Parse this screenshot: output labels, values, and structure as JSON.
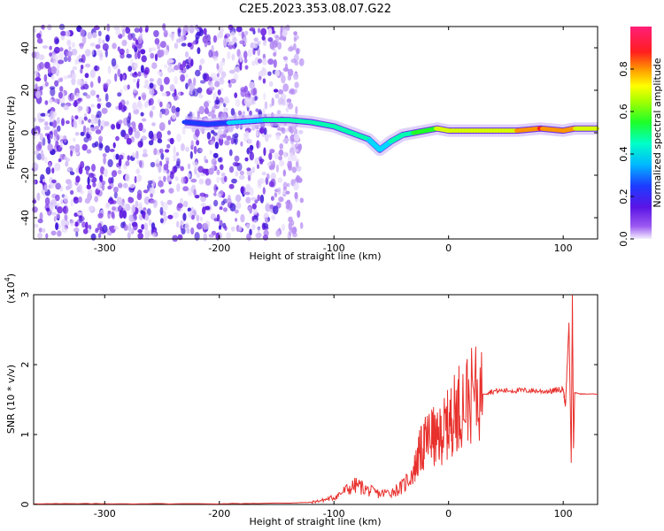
{
  "title": "C2E5.2023.353.08.07.G22",
  "chart_data": [
    {
      "type": "heatmap",
      "xlabel": "Height of straight line (km)",
      "ylabel": "Frequency (Hz)",
      "xlim": [
        -362,
        130
      ],
      "ylim": [
        -50,
        50
      ],
      "x_ticks": [
        -300,
        -200,
        -100,
        0,
        100
      ],
      "x_tick_labels": [
        "-300",
        "-200",
        "-100",
        "0",
        "100"
      ],
      "y_ticks": [
        -40,
        -20,
        0,
        20,
        40
      ],
      "y_tick_labels": [
        "-40",
        "-20",
        "0",
        "20",
        "40"
      ],
      "colorbar": {
        "label": "Normalized spectral amplitude",
        "range": [
          0,
          1
        ],
        "ticks": [
          0.0,
          0.2,
          0.4,
          0.6,
          0.8
        ],
        "tick_labels": [
          "0.0",
          "0.2",
          "0.4",
          "0.6",
          "0.8"
        ],
        "colormap": "rainbow (purple-blue-cyan-green-yellow-red-magenta)"
      },
      "noise_region_x": [
        -362,
        -128
      ],
      "signal_ridge": {
        "x": [
          -230,
          -210,
          -185,
          -160,
          -140,
          -120,
          -100,
          -85,
          -70,
          -60,
          -50,
          -40,
          -30,
          -20,
          -10,
          0,
          20,
          40,
          60,
          80,
          100,
          110,
          120,
          130
        ],
        "y": [
          5,
          4,
          5,
          6,
          6,
          5,
          3,
          0,
          -3,
          -8,
          -4,
          -1,
          0,
          1,
          2,
          1,
          1,
          1,
          1,
          2,
          1,
          2,
          2,
          2
        ],
        "amplitude": [
          0.35,
          0.3,
          0.45,
          0.5,
          0.5,
          0.5,
          0.55,
          0.5,
          0.5,
          0.45,
          0.5,
          0.55,
          0.6,
          0.65,
          0.7,
          0.7,
          0.75,
          0.75,
          0.8,
          0.9,
          0.85,
          0.8,
          0.75,
          0.7
        ]
      }
    },
    {
      "type": "line",
      "xlabel": "Height of straight line (km)",
      "ylabel": "SNR (10 * v/v)",
      "y_multiplier_label": "(x10",
      "y_multiplier_exp": "4",
      "xlim": [
        -362,
        130
      ],
      "ylim": [
        0,
        3
      ],
      "x_ticks": [
        -300,
        -200,
        -100,
        0,
        100
      ],
      "x_tick_labels": [
        "-300",
        "-200",
        "-100",
        "0",
        "100"
      ],
      "y_ticks": [
        0,
        1,
        2,
        3
      ],
      "y_tick_labels": [
        "0",
        "1",
        "2",
        "3"
      ],
      "series": [
        {
          "color": "#e8302c",
          "x": [
            -362,
            -300,
            -200,
            -140,
            -120,
            -110,
            -100,
            -90,
            -80,
            -70,
            -60,
            -50,
            -40,
            -30,
            -25,
            -20,
            -15,
            -10,
            -5,
            0,
            5,
            10,
            20,
            30,
            40,
            50,
            60,
            70,
            80,
            90,
            95,
            100,
            102,
            105,
            107,
            108,
            109,
            110,
            115,
            120,
            130
          ],
          "y": [
            0.01,
            0.01,
            0.01,
            0.02,
            0.03,
            0.06,
            0.1,
            0.2,
            0.28,
            0.2,
            0.15,
            0.18,
            0.25,
            0.5,
            0.75,
            0.9,
            1.0,
            0.9,
            1.05,
            1.15,
            1.3,
            1.45,
            1.55,
            1.6,
            1.62,
            1.63,
            1.63,
            1.63,
            1.62,
            1.62,
            1.64,
            1.65,
            1.4,
            2.6,
            0.6,
            3.0,
            0.8,
            1.6,
            1.58,
            1.58,
            1.58
          ]
        }
      ]
    }
  ]
}
